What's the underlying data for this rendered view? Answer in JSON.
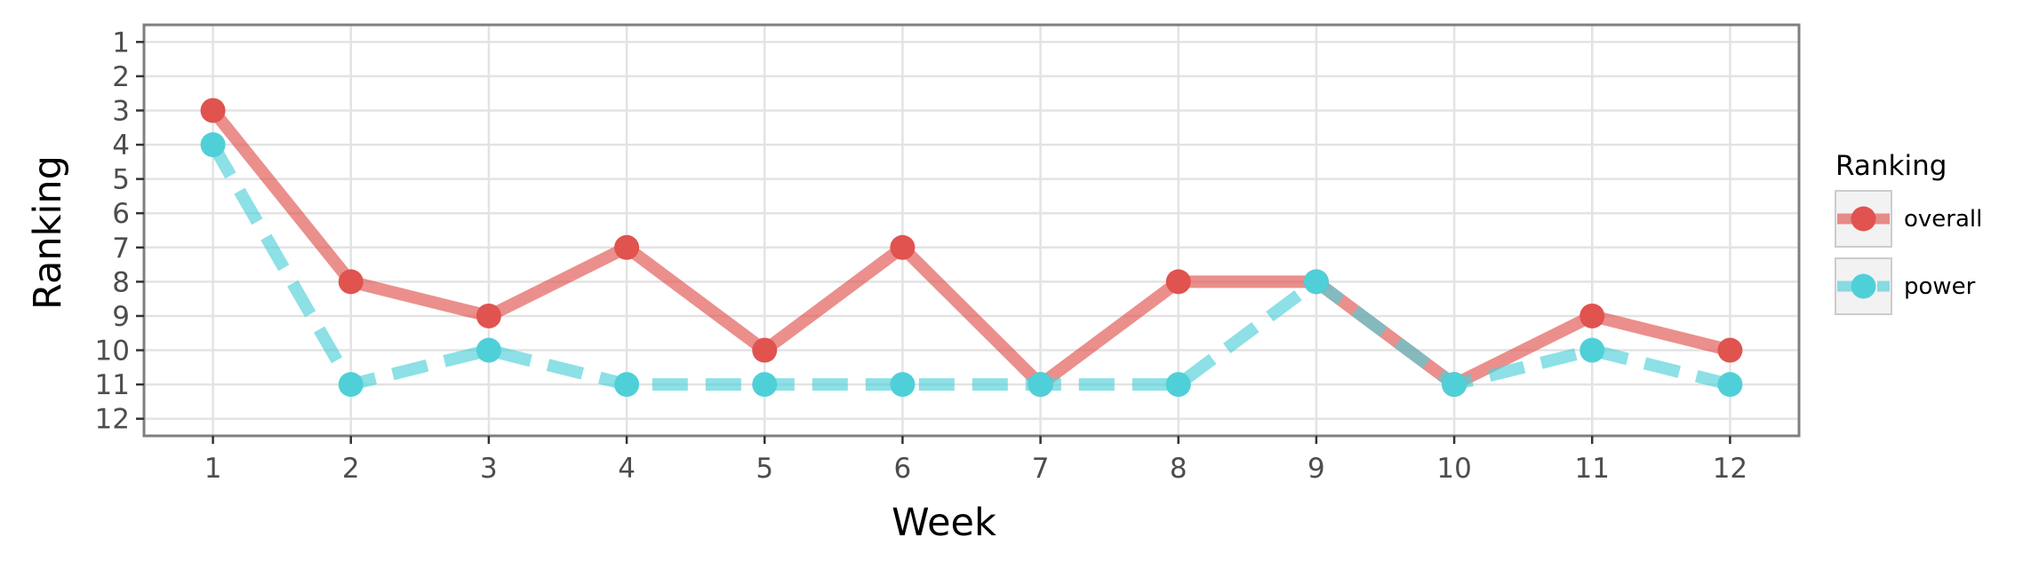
{
  "chart_data": {
    "type": "line",
    "xlabel": "Week",
    "ylabel": "Ranking",
    "x": [
      1,
      2,
      3,
      4,
      5,
      6,
      7,
      8,
      9,
      10,
      11,
      12
    ],
    "x_ticks": [
      "1",
      "2",
      "3",
      "4",
      "5",
      "6",
      "7",
      "8",
      "9",
      "10",
      "11",
      "12"
    ],
    "y_ticks": [
      "1",
      "2",
      "3",
      "4",
      "5",
      "6",
      "7",
      "8",
      "9",
      "10",
      "11",
      "12"
    ],
    "xlim": [
      0.5,
      12.5
    ],
    "ylim": [
      12.5,
      0.5
    ],
    "y_reversed": true,
    "grid": true,
    "legend": {
      "title": "Ranking",
      "position": "right"
    },
    "series": [
      {
        "name": "overall",
        "color": "#e0534f",
        "style": "solid",
        "values": [
          3,
          8,
          9,
          7,
          10,
          7,
          11,
          8,
          8,
          11,
          9,
          10
        ]
      },
      {
        "name": "power",
        "color": "#4fd0d8",
        "style": "dashed",
        "values": [
          4,
          11,
          10,
          11,
          11,
          11,
          11,
          11,
          8,
          11,
          10,
          11
        ]
      }
    ]
  }
}
